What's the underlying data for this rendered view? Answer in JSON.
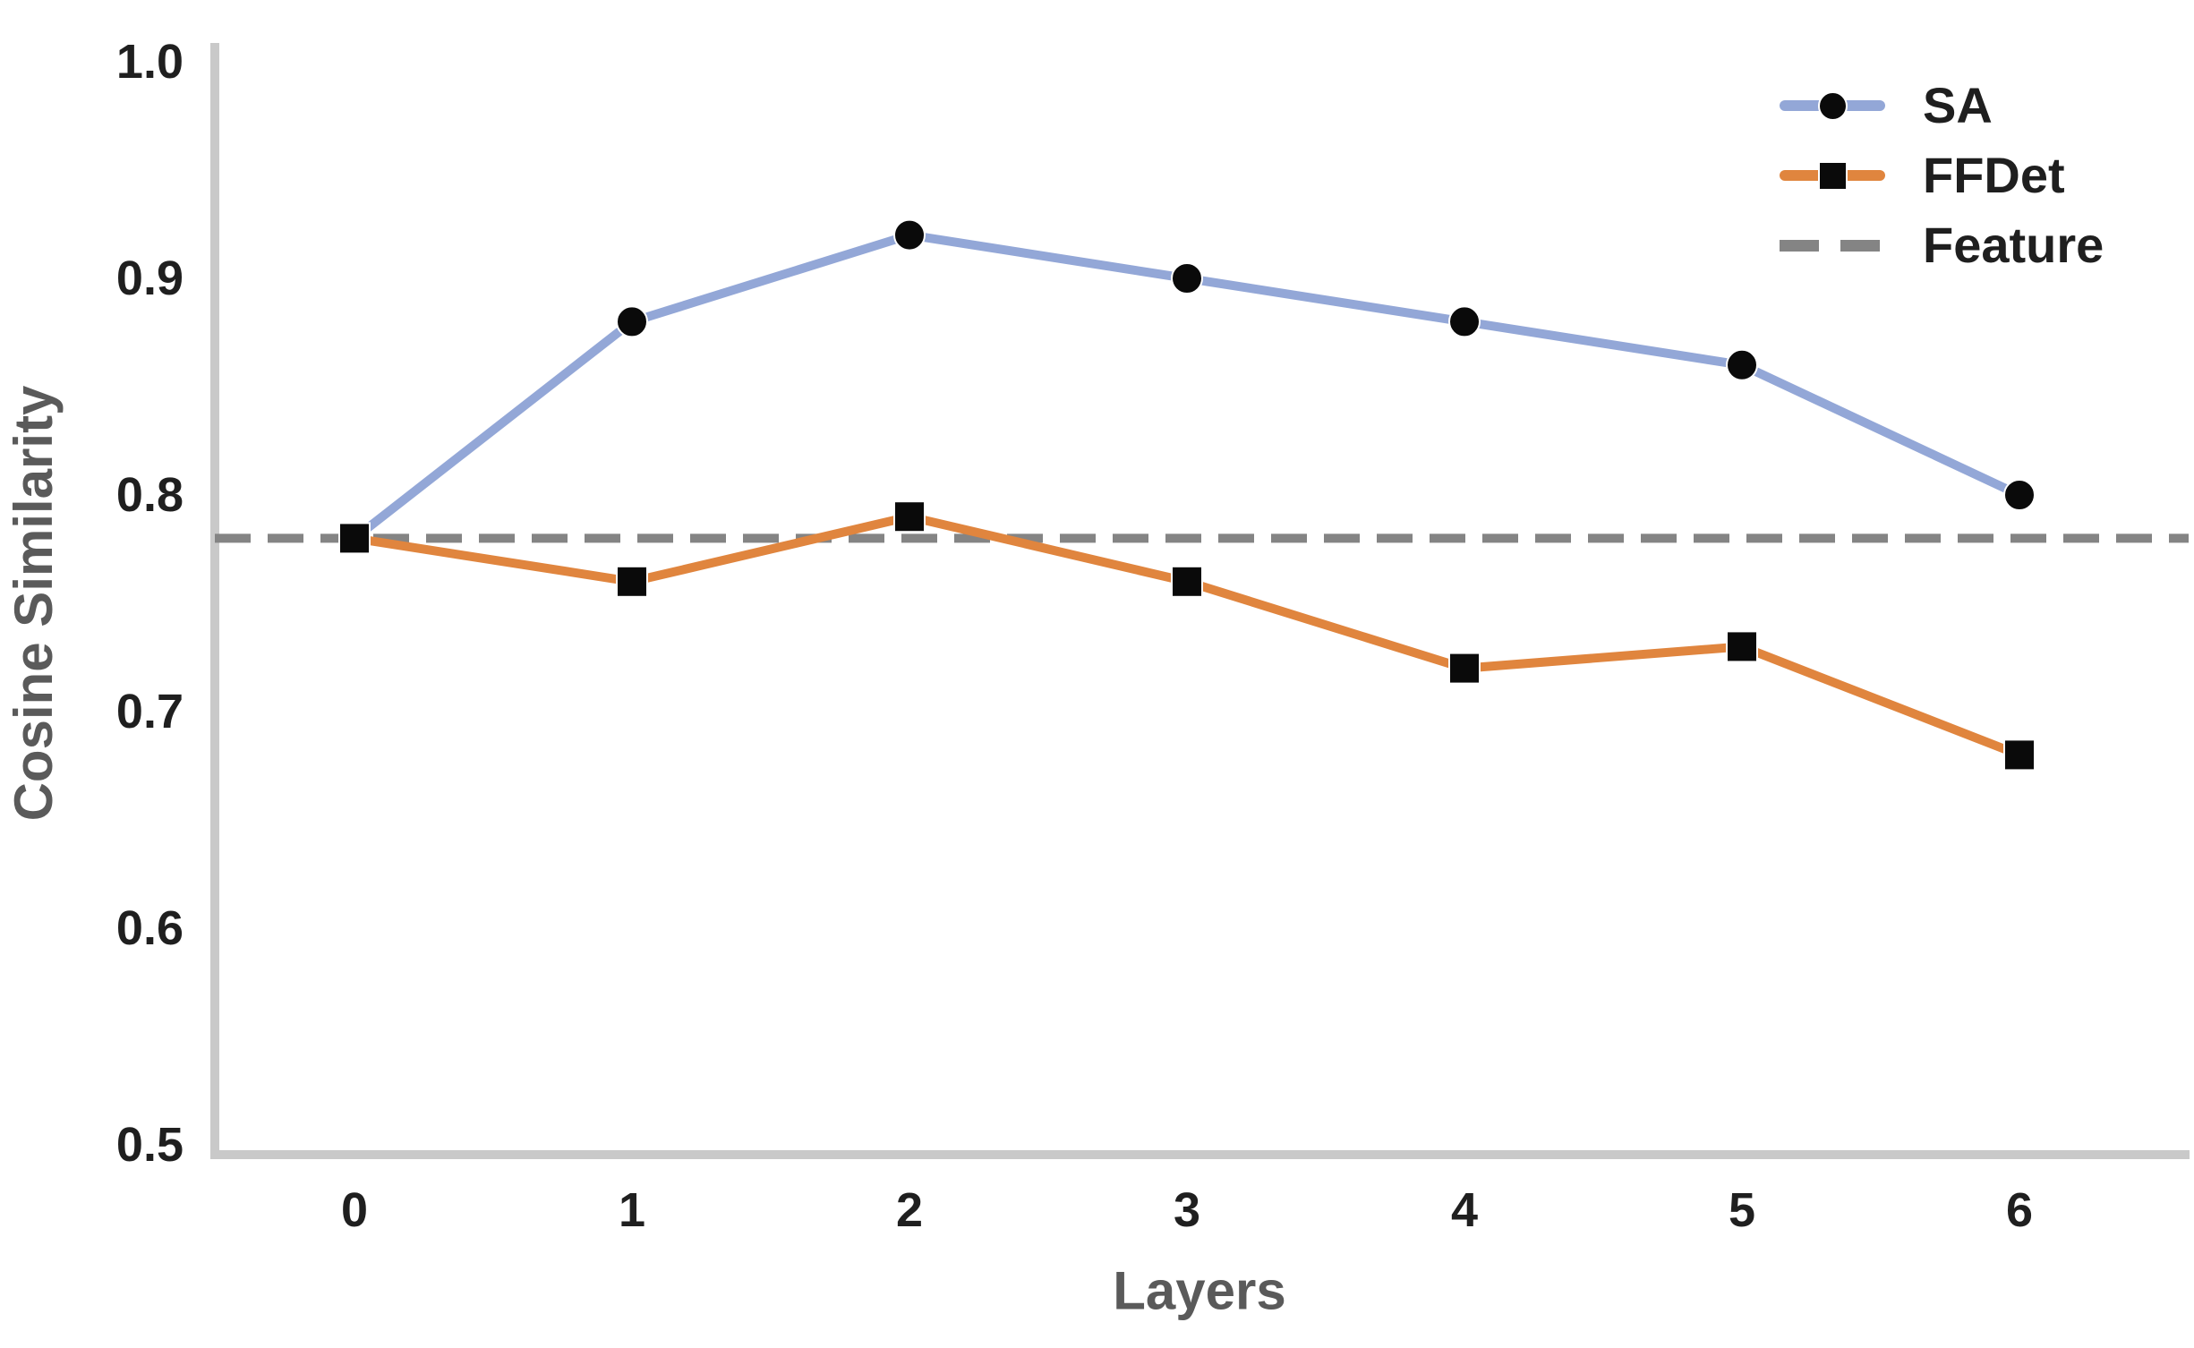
{
  "chart_data": {
    "type": "line",
    "title": "",
    "xlabel": "Layers",
    "ylabel": "Cosine Similarity",
    "x": [
      0,
      1,
      2,
      3,
      4,
      5,
      6
    ],
    "xticklabels": [
      "0",
      "1",
      "2",
      "3",
      "4",
      "5",
      "6"
    ],
    "yticks": [
      0.5,
      0.6,
      0.7,
      0.8,
      0.9,
      1.0
    ],
    "yticklabels": [
      "0.5",
      "0.6",
      "0.7",
      "0.8",
      "0.9",
      "1.0"
    ],
    "ylim": [
      0.5,
      1.0
    ],
    "grid": false,
    "legend_position": "upper-right",
    "series": [
      {
        "name": "SA",
        "marker": "circle",
        "color": "#93a7d7",
        "marker_color": "#0a0a0a",
        "values": [
          0.78,
          0.88,
          0.92,
          0.9,
          0.88,
          0.86,
          0.8
        ]
      },
      {
        "name": "FFDet",
        "marker": "square",
        "color": "#e0853e",
        "marker_color": "#0a0a0a",
        "values": [
          0.78,
          0.76,
          0.79,
          0.76,
          0.72,
          0.73,
          0.68
        ]
      }
    ],
    "reference_line": {
      "name": "Feature",
      "value": 0.78,
      "style": "dashed",
      "color": "#848484"
    }
  },
  "style": {
    "background": "#ffffff",
    "spine_color": "#c9c9c9",
    "tick_label_color": "#1f1f1f",
    "axis_label_color": "#5a5a5a",
    "legend_text_color": "#1f1f1f"
  }
}
